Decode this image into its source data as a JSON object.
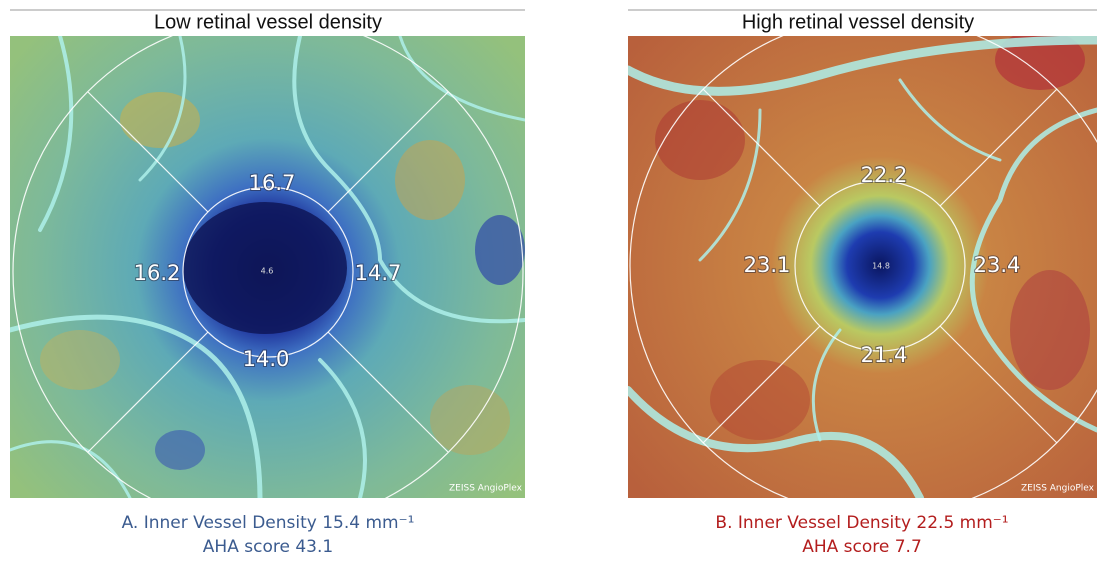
{
  "panels": [
    {
      "header": "Low retinal vessel density",
      "sectors": {
        "superior": "16.7",
        "temporal": "16.2",
        "nasal": "14.7",
        "inferior": "14.0",
        "center": "4.6"
      },
      "watermark": "ZEISS AngioPlex",
      "caption": {
        "line1": "A. Inner Vessel Density 15.4 mm⁻¹",
        "line2": "AHA score 43.1"
      }
    },
    {
      "header": "High retinal vessel density",
      "sectors": {
        "superior": "22.2",
        "temporal": "23.1",
        "nasal": "23.4",
        "inferior": "21.4",
        "center": "14.8"
      },
      "watermark": "ZEISS AngioPlex",
      "caption": {
        "line1": "B. Inner Vessel Density 22.5 mm⁻¹",
        "line2": "AHA score 7.7"
      }
    }
  ]
}
